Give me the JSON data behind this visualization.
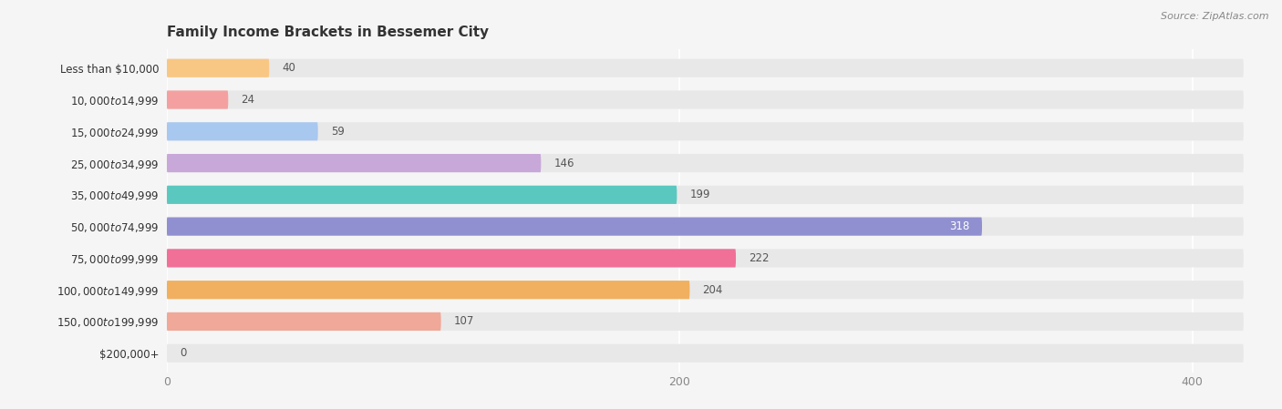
{
  "title": "Family Income Brackets in Bessemer City",
  "source": "Source: ZipAtlas.com",
  "categories": [
    "Less than $10,000",
    "$10,000 to $14,999",
    "$15,000 to $24,999",
    "$25,000 to $34,999",
    "$35,000 to $49,999",
    "$50,000 to $74,999",
    "$75,000 to $99,999",
    "$100,000 to $149,999",
    "$150,000 to $199,999",
    "$200,000+"
  ],
  "values": [
    40,
    24,
    59,
    146,
    199,
    318,
    222,
    204,
    107,
    0
  ],
  "bar_colors": [
    "#f9c784",
    "#f4a0a0",
    "#a8c8f0",
    "#c8a8d8",
    "#5bc8c0",
    "#9090d0",
    "#f07098",
    "#f0b060",
    "#f0a898",
    "#b0c8f0"
  ],
  "xlim": [
    0,
    420
  ],
  "xticks": [
    0,
    200,
    400
  ],
  "background_color": "#f5f5f5",
  "bar_background_color": "#e8e8e8",
  "title_fontsize": 11,
  "label_fontsize": 8.5,
  "value_fontsize": 8.5,
  "bar_height": 0.58,
  "figsize": [
    14.06,
    4.49
  ],
  "dpi": 100
}
